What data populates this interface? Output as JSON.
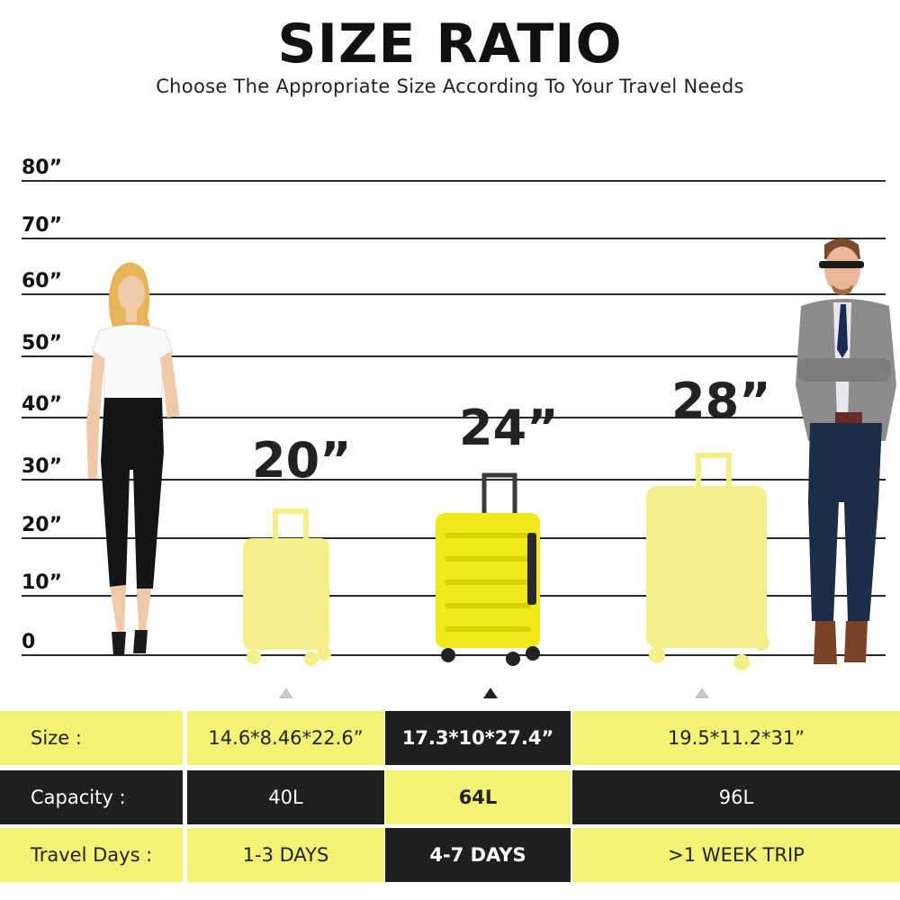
{
  "header": {
    "title": "SIZE RATIO",
    "subtitle": "Choose The Appropriate Size According To Your Travel Needs"
  },
  "scale": {
    "ticks": [
      "80”",
      "70”",
      "60”",
      "50”",
      "40”",
      "30”",
      "20”",
      "10”",
      "0"
    ]
  },
  "suitcases": [
    {
      "label": "20”",
      "selected": false
    },
    {
      "label": "24”",
      "selected": true
    },
    {
      "label": "28”",
      "selected": false
    }
  ],
  "table": {
    "rows": [
      {
        "label": "Size :",
        "values": [
          "14.6*8.46*22.6”",
          "17.3*10*27.4”",
          "19.5*11.2*31”"
        ]
      },
      {
        "label": "Capacity :",
        "values": [
          "40L",
          "64L",
          "96L"
        ]
      },
      {
        "label": "Travel Days :",
        "values": [
          "1-3 DAYS",
          "4-7 DAYS",
          ">1 WEEK TRIP"
        ]
      }
    ]
  },
  "colors": {
    "accent_yellow": "#f2f274",
    "suitcase_yellow": "#f5f04a",
    "dark": "#1f1f1f"
  }
}
